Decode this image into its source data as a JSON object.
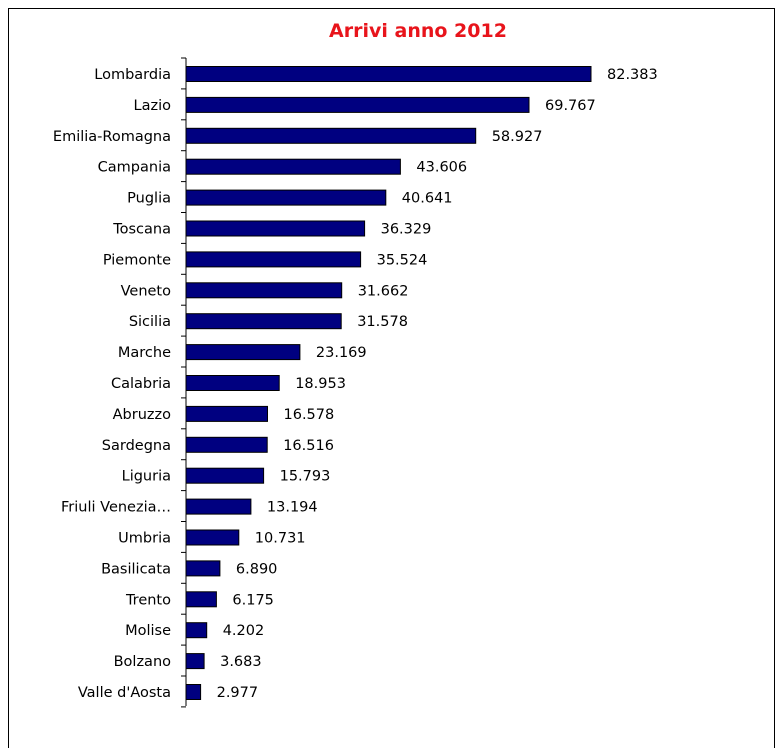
{
  "colors": {
    "title": "#e8141b",
    "bar_fill": "#000080",
    "bar_stroke": "#000000",
    "axis": "#000000",
    "background": "#ffffff"
  },
  "chart_data": {
    "type": "bar",
    "orientation": "horizontal",
    "title": "Arrivi anno 2012",
    "xlabel": "",
    "ylabel": "",
    "grid": false,
    "legend": "none",
    "xlim": [
      0,
      85000
    ],
    "categories": [
      "Lombardia",
      "Lazio",
      "Emilia-Romagna",
      "Campania",
      "Puglia",
      "Toscana",
      "Piemonte",
      "Veneto",
      "Sicilia",
      "Marche",
      "Calabria",
      "Abruzzo",
      "Sardegna",
      "Liguria",
      "Friuli Venezia…",
      "Umbria",
      "Basilicata",
      "Trento",
      "Molise",
      "Bolzano",
      "Valle d'Aosta"
    ],
    "values": [
      82383,
      69767,
      58927,
      43606,
      40641,
      36329,
      35524,
      31662,
      31578,
      23169,
      18953,
      16578,
      16516,
      15793,
      13194,
      10731,
      6890,
      6175,
      4202,
      3683,
      2977
    ],
    "value_labels": [
      "82.383",
      "69.767",
      "58.927",
      "43.606",
      "40.641",
      "36.329",
      "35.524",
      "31.662",
      "31.578",
      "23.169",
      "18.953",
      "16.578",
      "16.516",
      "15.793",
      "13.194",
      "10.731",
      "6.890",
      "6.175",
      "4.202",
      "3.683",
      "2.977"
    ]
  }
}
